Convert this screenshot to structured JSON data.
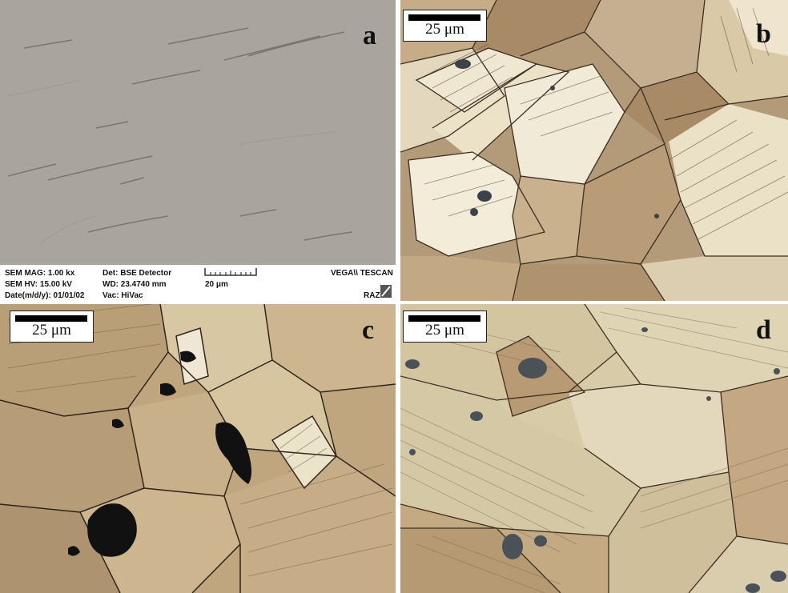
{
  "panels": {
    "a": {
      "label": "a"
    },
    "b": {
      "label": "b",
      "scale": "25 μm"
    },
    "c": {
      "label": "c",
      "scale": "25 μm"
    },
    "d": {
      "label": "d",
      "scale": "25 μm"
    }
  },
  "sem_info": {
    "mag": "SEM MAG: 1.00 kx",
    "hv": "SEM HV: 15.00 kV",
    "date": "Date(m/d/y): 01/01/02",
    "det": "Det: BSE Detector",
    "wd": "WD: 23.4740 mm",
    "vac": "Vac: HiVac",
    "scale": "20 μm",
    "brand": "VEGA\\\\ TESCAN",
    "lab": "RAZI"
  },
  "colors": {
    "sem_bg": "#a9a59e",
    "grain_light": "#d8c6a2",
    "grain_tan": "#b89c78",
    "grain_brown": "#a88a66",
    "twin_pale": "#efe7d2",
    "boundary": "#3a2e22",
    "void": "#111111",
    "inclusion": "#4a5258"
  }
}
